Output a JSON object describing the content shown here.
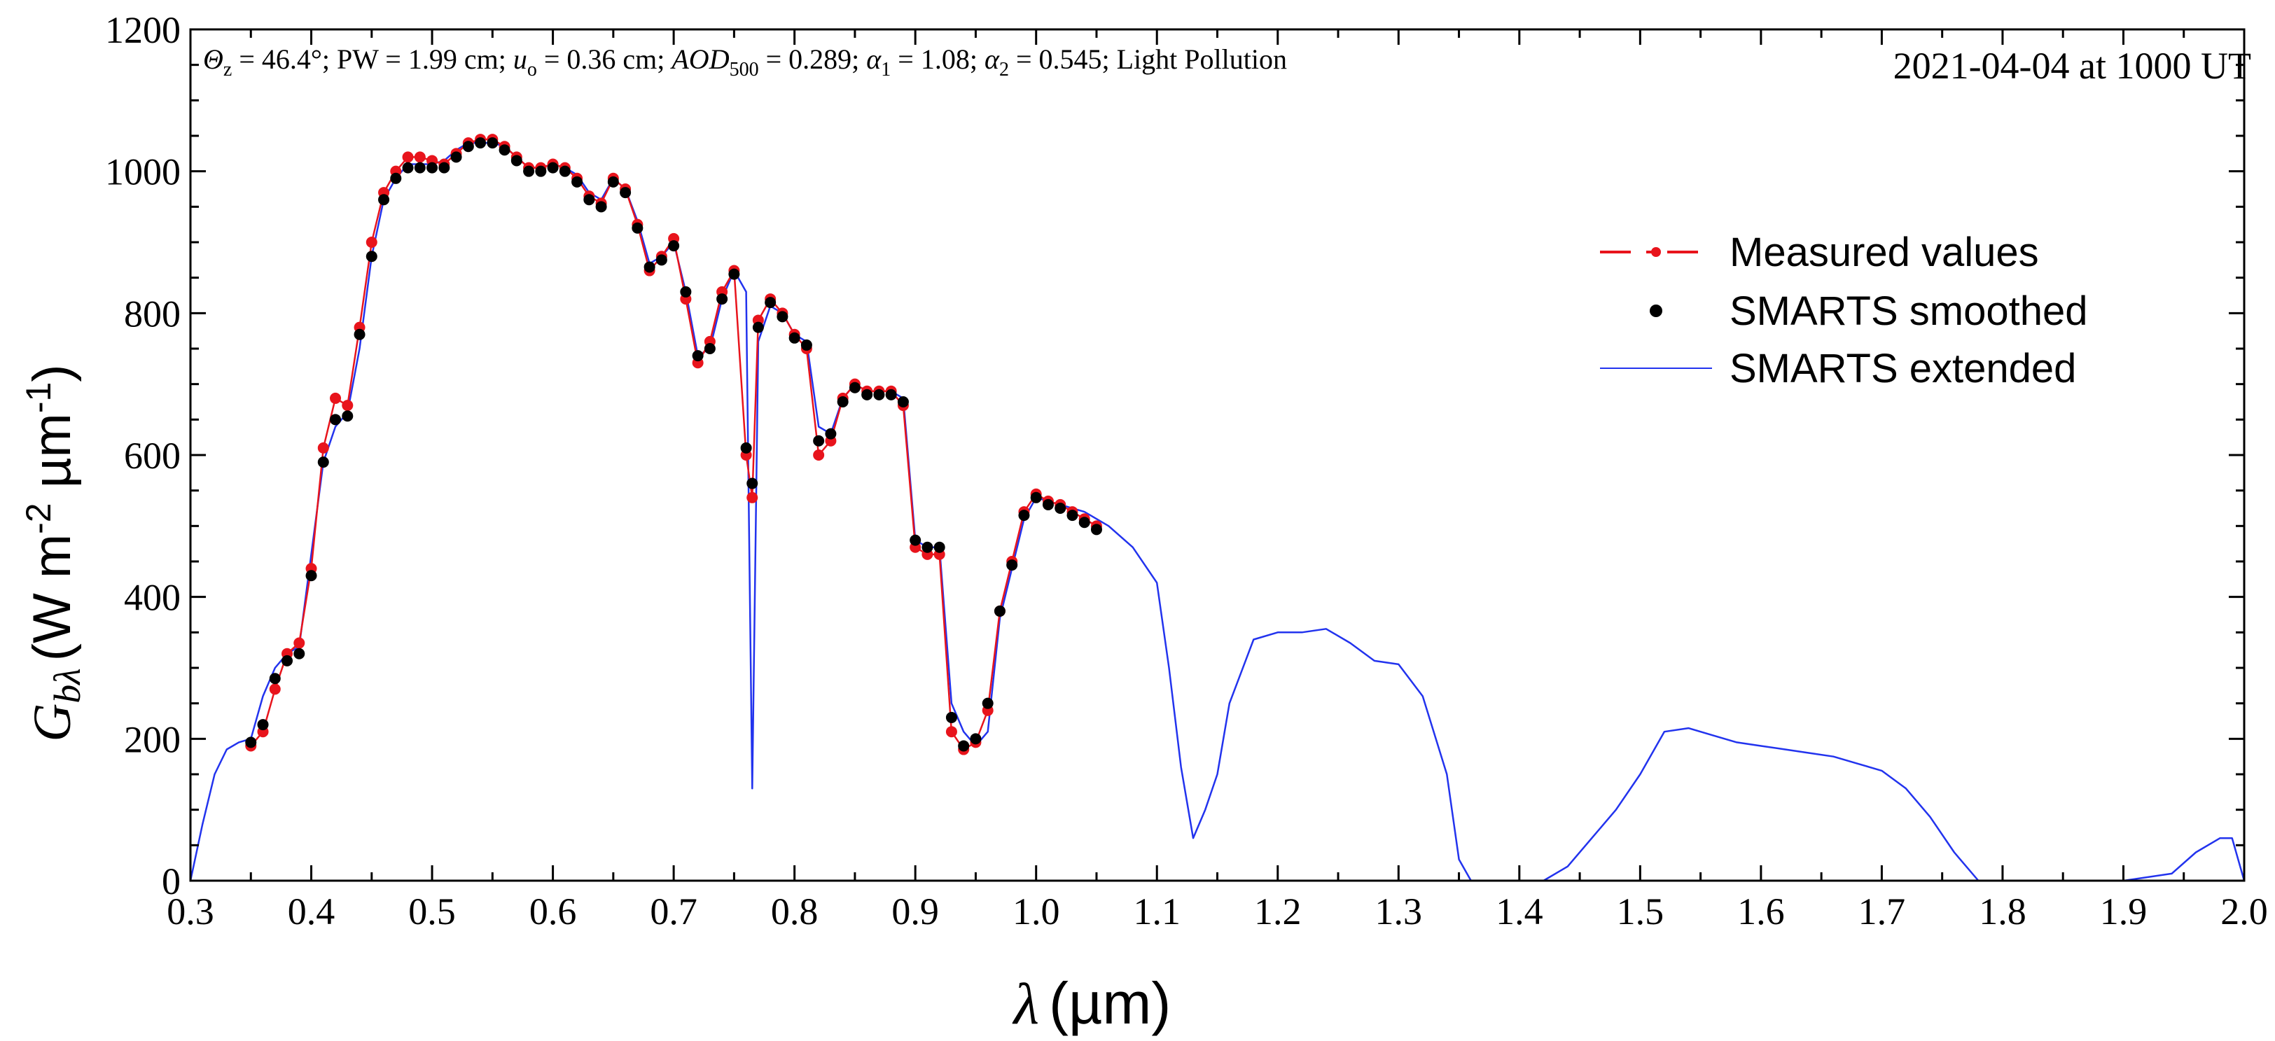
{
  "chart_data": {
    "type": "line",
    "title": "",
    "annotation": {
      "params": [
        {
          "sym": "Θ",
          "sub": "z",
          "rest": " = 46.4°; "
        },
        {
          "sym": "",
          "sub": "",
          "rest": "PW = 1.99 cm; "
        },
        {
          "sym": "u",
          "sub": "o",
          "rest": " = 0.36 cm; "
        },
        {
          "sym": "AOD",
          "sub": "500",
          "rest": " = 0.289; "
        },
        {
          "sym": "α",
          "sub": "1",
          "rest": " = 1.08; "
        },
        {
          "sym": "α",
          "sub": "2",
          "rest": " = 0.545; "
        },
        {
          "sym": "",
          "sub": "",
          "rest": "Light Pollution"
        }
      ],
      "date": "2021-04-04 at 1000 UT"
    },
    "xlabel_symbol": "λ",
    "xlabel_unit": "(µm)",
    "ylabel_symbol": "G",
    "ylabel_sub": "bλ",
    "ylabel_unit": "(W m",
    "ylabel_exp1": "-2",
    "ylabel_mid": " µm",
    "ylabel_exp2": "-1",
    "ylabel_close": ")",
    "xlim": [
      0.3,
      2.0
    ],
    "ylim": [
      0,
      1200
    ],
    "xticks": [
      "0.3",
      "0.4",
      "0.5",
      "0.6",
      "0.7",
      "0.8",
      "0.9",
      "1.0",
      "1.1",
      "1.2",
      "1.3",
      "1.4",
      "1.5",
      "1.6",
      "1.7",
      "1.8",
      "1.9",
      "2.0"
    ],
    "yticks": [
      "0",
      "200",
      "400",
      "600",
      "800",
      "1000",
      "1200"
    ],
    "legend": {
      "position": "top-right",
      "entries": [
        {
          "label": "Measured values",
          "style": "dash-dot",
          "color": "#e8141c"
        },
        {
          "label": "SMARTS smoothed",
          "style": "dot",
          "color": "#000000"
        },
        {
          "label": "SMARTS extended",
          "style": "line",
          "color": "#2233ee"
        }
      ]
    },
    "series": [
      {
        "name": "SMARTS extended",
        "color": "#2233ee",
        "x": [
          0.3,
          0.31,
          0.32,
          0.33,
          0.34,
          0.35,
          0.36,
          0.37,
          0.38,
          0.39,
          0.4,
          0.41,
          0.42,
          0.43,
          0.44,
          0.45,
          0.46,
          0.47,
          0.48,
          0.49,
          0.5,
          0.51,
          0.52,
          0.53,
          0.54,
          0.55,
          0.56,
          0.57,
          0.58,
          0.59,
          0.6,
          0.61,
          0.62,
          0.63,
          0.64,
          0.65,
          0.66,
          0.67,
          0.68,
          0.69,
          0.7,
          0.71,
          0.72,
          0.73,
          0.74,
          0.75,
          0.76,
          0.765,
          0.77,
          0.78,
          0.79,
          0.8,
          0.81,
          0.82,
          0.83,
          0.84,
          0.85,
          0.86,
          0.87,
          0.88,
          0.89,
          0.9,
          0.91,
          0.92,
          0.93,
          0.94,
          0.95,
          0.96,
          0.97,
          0.98,
          0.99,
          1.0,
          1.02,
          1.04,
          1.06,
          1.08,
          1.1,
          1.11,
          1.12,
          1.13,
          1.14,
          1.15,
          1.16,
          1.18,
          1.2,
          1.22,
          1.24,
          1.26,
          1.28,
          1.3,
          1.32,
          1.34,
          1.35,
          1.36,
          1.4,
          1.42,
          1.44,
          1.46,
          1.48,
          1.5,
          1.52,
          1.54,
          1.56,
          1.58,
          1.6,
          1.62,
          1.64,
          1.66,
          1.68,
          1.7,
          1.72,
          1.74,
          1.76,
          1.78,
          1.8,
          1.81,
          1.85,
          1.9,
          1.94,
          1.96,
          1.98,
          1.99,
          2.0
        ],
        "y": [
          0,
          80,
          150,
          185,
          195,
          200,
          260,
          300,
          320,
          330,
          460,
          590,
          640,
          660,
          750,
          880,
          960,
          990,
          1010,
          1010,
          1010,
          1015,
          1030,
          1040,
          1040,
          1040,
          1035,
          1020,
          1005,
          1005,
          1010,
          1005,
          995,
          970,
          960,
          990,
          975,
          930,
          870,
          880,
          900,
          830,
          740,
          750,
          820,
          860,
          830,
          130,
          760,
          810,
          800,
          770,
          760,
          640,
          630,
          680,
          700,
          690,
          690,
          690,
          680,
          480,
          470,
          470,
          250,
          210,
          190,
          210,
          370,
          440,
          510,
          540,
          530,
          520,
          500,
          470,
          420,
          300,
          160,
          60,
          100,
          150,
          250,
          340,
          350,
          350,
          355,
          335,
          310,
          305,
          260,
          150,
          30,
          0,
          0,
          0,
          20,
          60,
          100,
          150,
          210,
          215,
          205,
          195,
          190,
          185,
          180,
          175,
          165,
          155,
          130,
          90,
          40,
          0,
          0,
          0,
          0,
          0,
          10,
          40,
          60,
          60,
          0
        ]
      },
      {
        "name": "Measured values",
        "color": "#e8141c",
        "x": [
          0.35,
          0.36,
          0.37,
          0.38,
          0.39,
          0.4,
          0.41,
          0.42,
          0.43,
          0.44,
          0.45,
          0.46,
          0.47,
          0.48,
          0.49,
          0.5,
          0.51,
          0.52,
          0.53,
          0.54,
          0.55,
          0.56,
          0.57,
          0.58,
          0.59,
          0.6,
          0.61,
          0.62,
          0.63,
          0.64,
          0.65,
          0.66,
          0.67,
          0.68,
          0.69,
          0.7,
          0.71,
          0.72,
          0.73,
          0.74,
          0.75,
          0.76,
          0.765,
          0.77,
          0.78,
          0.79,
          0.8,
          0.81,
          0.82,
          0.83,
          0.84,
          0.85,
          0.86,
          0.87,
          0.88,
          0.89,
          0.9,
          0.91,
          0.92,
          0.93,
          0.94,
          0.95,
          0.96,
          0.97,
          0.98,
          0.99,
          1.0,
          1.01,
          1.02,
          1.03,
          1.04,
          1.05
        ],
        "y": [
          190,
          210,
          270,
          320,
          335,
          440,
          610,
          680,
          670,
          780,
          900,
          970,
          1000,
          1020,
          1020,
          1015,
          1010,
          1025,
          1040,
          1045,
          1045,
          1035,
          1020,
          1005,
          1005,
          1010,
          1005,
          990,
          965,
          955,
          990,
          975,
          925,
          860,
          880,
          905,
          820,
          730,
          760,
          830,
          860,
          600,
          540,
          790,
          820,
          800,
          770,
          750,
          600,
          620,
          680,
          700,
          690,
          690,
          690,
          670,
          470,
          460,
          460,
          210,
          185,
          195,
          240,
          380,
          450,
          520,
          545,
          535,
          530,
          520,
          510,
          500
        ]
      },
      {
        "name": "SMARTS smoothed",
        "color": "#000000",
        "x": [
          0.35,
          0.36,
          0.37,
          0.38,
          0.39,
          0.4,
          0.41,
          0.42,
          0.43,
          0.44,
          0.45,
          0.46,
          0.47,
          0.48,
          0.49,
          0.5,
          0.51,
          0.52,
          0.53,
          0.54,
          0.55,
          0.56,
          0.57,
          0.58,
          0.59,
          0.6,
          0.61,
          0.62,
          0.63,
          0.64,
          0.65,
          0.66,
          0.67,
          0.68,
          0.69,
          0.7,
          0.71,
          0.72,
          0.73,
          0.74,
          0.75,
          0.76,
          0.765,
          0.77,
          0.78,
          0.79,
          0.8,
          0.81,
          0.82,
          0.83,
          0.84,
          0.85,
          0.86,
          0.87,
          0.88,
          0.89,
          0.9,
          0.91,
          0.92,
          0.93,
          0.94,
          0.95,
          0.96,
          0.97,
          0.98,
          0.99,
          1.0,
          1.01,
          1.02,
          1.03,
          1.04,
          1.05
        ],
        "y": [
          195,
          220,
          285,
          310,
          320,
          430,
          590,
          650,
          655,
          770,
          880,
          960,
          990,
          1005,
          1005,
          1005,
          1005,
          1020,
          1035,
          1040,
          1040,
          1030,
          1015,
          1000,
          1000,
          1005,
          1000,
          985,
          960,
          950,
          985,
          970,
          920,
          865,
          875,
          895,
          830,
          740,
          750,
          820,
          855,
          610,
          560,
          780,
          815,
          795,
          765,
          755,
          620,
          630,
          675,
          695,
          685,
          685,
          685,
          675,
          480,
          470,
          470,
          230,
          190,
          200,
          250,
          380,
          445,
          515,
          540,
          530,
          525,
          515,
          505,
          495
        ]
      }
    ]
  }
}
